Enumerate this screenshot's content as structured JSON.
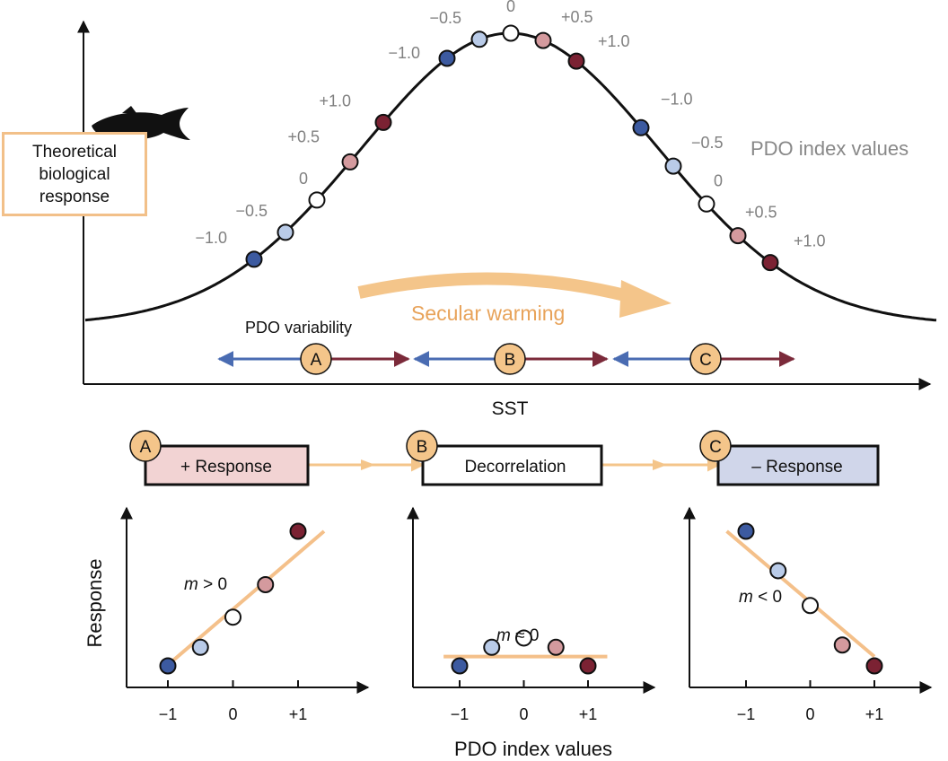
{
  "top_panel": {
    "box_label": "Theoretical\nbiological\nresponse",
    "x_axis_label": "SST",
    "legend_label": "PDO index values",
    "pdo_variability_label": "PDO variability",
    "secular_warming_label": "Secular warming",
    "regions": [
      {
        "id": "A",
        "label": "A"
      },
      {
        "id": "B",
        "label": "B"
      },
      {
        "id": "C",
        "label": "C"
      }
    ],
    "point_groups": [
      {
        "region": "A",
        "labels": [
          "−1.0",
          "−0.5",
          "0",
          "+0.5",
          "+1.0"
        ]
      },
      {
        "region": "B",
        "labels": [
          "−1.0",
          "−0.5",
          "0",
          "+0.5",
          "+1.0"
        ]
      },
      {
        "region": "C",
        "labels": [
          "−1.0",
          "−0.5",
          "0",
          "+0.5",
          "+1.0"
        ]
      }
    ]
  },
  "flow": [
    {
      "badge": "A",
      "label": "+ Response",
      "fill": "#f2d3d3"
    },
    {
      "badge": "B",
      "label": "Decorrelation",
      "fill": "#ffffff"
    },
    {
      "badge": "C",
      "label": "– Response",
      "fill": "#d0d6ea"
    }
  ],
  "chart_data": [
    {
      "type": "scatter",
      "title": "+ Response",
      "xlabel": "PDO index values",
      "ylabel": "Response",
      "x": [
        -1,
        -0.5,
        0,
        0.5,
        1
      ],
      "y": [
        0.1,
        0.5,
        1.15,
        1.85,
        3.0
      ],
      "fit_line": {
        "x": [
          -1.1,
          1.4
        ],
        "y": [
          0.0,
          3.0
        ]
      },
      "annotation": {
        "m": "m",
        " rest": " > 0"
      },
      "x_ticks": [
        "−1",
        "0",
        "+1"
      ],
      "xlim": [
        -1.6,
        2.1
      ],
      "ylim": [
        -0.5,
        3.8
      ]
    },
    {
      "type": "scatter",
      "title": "Decorrelation",
      "xlabel": "PDO index values",
      "ylabel": "Response",
      "x": [
        -1,
        -0.5,
        0,
        0.5,
        1
      ],
      "y": [
        0.1,
        0.5,
        0.7,
        0.5,
        0.1
      ],
      "fit_line": {
        "x": [
          -1.25,
          1.3
        ],
        "y": [
          0.3,
          0.3
        ]
      },
      "annotation": {
        "m": "m",
        "rest": " ≈ 0"
      },
      "x_ticks": [
        "−1",
        "0",
        "+1"
      ],
      "xlim": [
        -1.6,
        2.1
      ],
      "ylim": [
        -0.5,
        3.8
      ]
    },
    {
      "type": "scatter",
      "title": "– Response",
      "xlabel": "PDO index values",
      "ylabel": "Response",
      "x": [
        -1,
        -0.5,
        0,
        0.5,
        1
      ],
      "y": [
        3.0,
        2.15,
        1.4,
        0.55,
        0.1
      ],
      "fit_line": {
        "x": [
          -1.3,
          1.0
        ],
        "y": [
          3.0,
          0.3
        ]
      },
      "annotation": {
        "m": "m",
        "rest": " < 0"
      },
      "x_ticks": [
        "−1",
        "0",
        "+1"
      ],
      "xlim": [
        -1.6,
        2.1
      ],
      "ylim": [
        -0.5,
        3.8
      ]
    }
  ],
  "colors": {
    "neg_strong": "#3c5aa0",
    "neg_weak": "#b9cbe8",
    "neutral": "#ffffff",
    "pos_weak": "#d49a9e",
    "pos_strong": "#7b2233",
    "accent": "#f4c58a",
    "accent_text": "#e8a35a",
    "label_gray": "#808080",
    "arrow_blue": "#4a6cb2",
    "arrow_red": "#7b2a3a",
    "fit_line": "#f4c08a"
  }
}
